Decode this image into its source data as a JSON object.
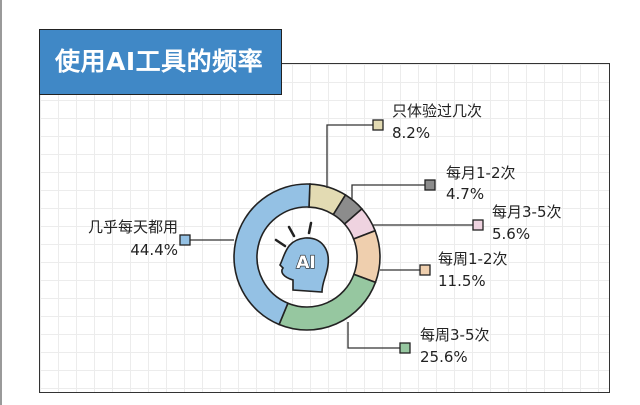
{
  "title": "使用AI工具的频率",
  "chart_data": {
    "type": "pie",
    "subtype": "donut",
    "title": "使用AI工具的频率",
    "center_icon": "ai-head-icon",
    "center_text": "AI",
    "slices": [
      {
        "label": "只体验过几次",
        "value": 8.2,
        "display": "8.2%",
        "color": "#e3dbb3"
      },
      {
        "label": "每月1-2次",
        "value": 4.7,
        "display": "4.7%",
        "color": "#8c8c8c"
      },
      {
        "label": "每月3-5次",
        "value": 5.6,
        "display": "5.6%",
        "color": "#efd3e0"
      },
      {
        "label": "每周1-2次",
        "value": 11.5,
        "display": "11.5%",
        "color": "#efcfae"
      },
      {
        "label": "每周3-5次",
        "value": 25.6,
        "display": "25.6%",
        "color": "#96c7a0"
      },
      {
        "label": "几乎每天都用",
        "value": 44.4,
        "display": "44.4%",
        "color": "#94c1e4"
      }
    ]
  }
}
